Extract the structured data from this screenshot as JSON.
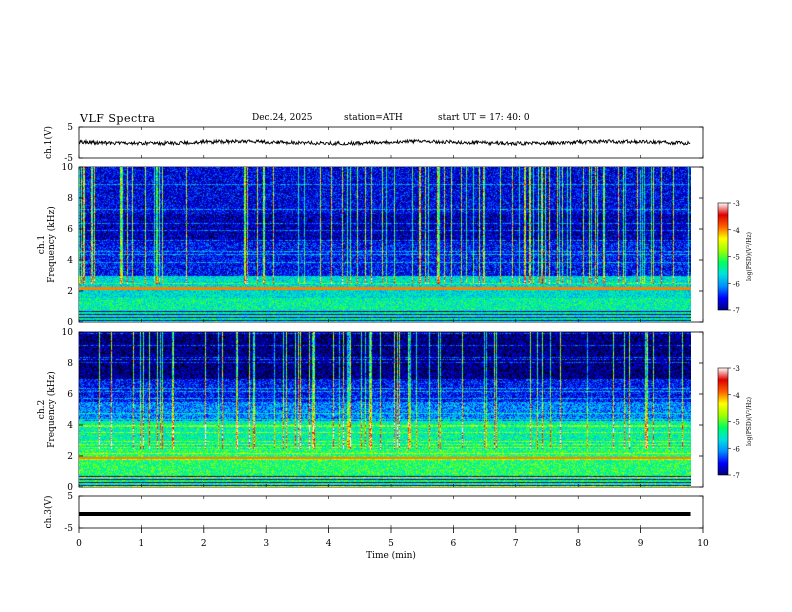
{
  "header": {
    "title": "VLF  Spectra",
    "date": "Dec.24, 2025",
    "station": "station=ATH",
    "start": "start  UT  =    17: 40: 0"
  },
  "chart_data": [
    {
      "type": "line",
      "name": "ch1-waveform",
      "ylabel": "ch.1(V)",
      "ylim": [
        -5,
        5
      ],
      "yticks": [
        5,
        -5
      ],
      "xlim": [
        0,
        10
      ],
      "trace_visible_end_min": 9.8,
      "baseline_v": 0.0,
      "noise_amplitude_v": 0.6
    },
    {
      "type": "heatmap",
      "name": "ch1-spectrogram",
      "ylabel": "ch.1\nFrequency (kHz)",
      "ylim": [
        0,
        10
      ],
      "yticks": [
        0,
        2,
        4,
        6,
        8,
        10
      ],
      "xlim": [
        0,
        10
      ],
      "colorbar": {
        "label": "log(PSD)(V²/Hz)",
        "range": [
          -7,
          -3
        ],
        "ticks": [
          -3,
          -4,
          -5,
          -6,
          -7
        ]
      }
    },
    {
      "type": "heatmap",
      "name": "ch2-spectrogram",
      "ylabel": "ch.2\nFrequency (kHz)",
      "ylim": [
        0,
        10
      ],
      "yticks": [
        0,
        2,
        4,
        6,
        8,
        10
      ],
      "xlim": [
        0,
        10
      ],
      "colorbar": {
        "label": "log(PSD)(V²/Hz)",
        "range": [
          -7,
          -3
        ],
        "ticks": [
          -3,
          -4,
          -5,
          -6,
          -7
        ]
      }
    },
    {
      "type": "line",
      "name": "ch3-waveform",
      "ylabel": "ch.3(V)",
      "ylim": [
        -5,
        5
      ],
      "yticks": [
        5,
        -5
      ],
      "xlim": [
        0,
        10
      ],
      "baseline_v": 0.0,
      "xlabel": "Time  (min)",
      "xticks": [
        0,
        1,
        2,
        3,
        4,
        5,
        6,
        7,
        8,
        9,
        10
      ]
    }
  ],
  "colors": {
    "colormap": [
      "#000000",
      "#00007a",
      "#0000ff",
      "#0090ff",
      "#00e0e0",
      "#00ff60",
      "#a0ff00",
      "#ffff00",
      "#ff6000",
      "#e00000",
      "#ffffff"
    ]
  }
}
